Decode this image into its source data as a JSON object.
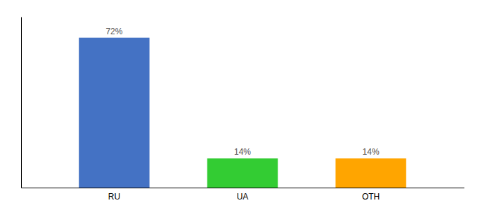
{
  "chart_data": {
    "type": "bar",
    "categories": [
      "RU",
      "UA",
      "OTH"
    ],
    "values": [
      72,
      14,
      14
    ],
    "value_labels": [
      "72%",
      "14%",
      "14%"
    ],
    "data_labels": true,
    "colors": [
      "#4472C4",
      "#33CC33",
      "#FFA500"
    ],
    "ylim": [
      0,
      82
    ],
    "grid": false,
    "tick_labels": "x"
  }
}
